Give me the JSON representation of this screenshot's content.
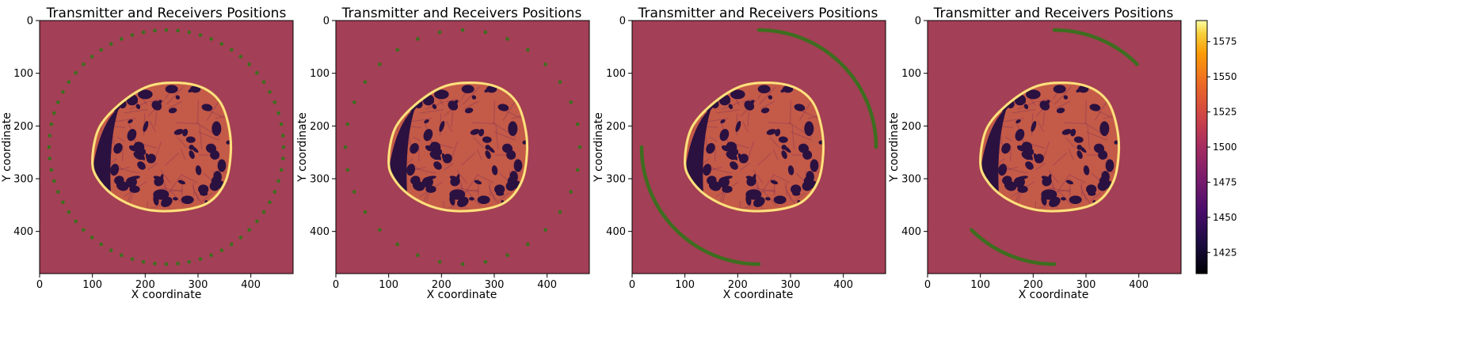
{
  "chart_data": [
    {
      "type": "heatmap",
      "panel": 1,
      "title": "Transmitter and Receivers Positions",
      "xlabel": "X coordinate",
      "ylabel": "Y coordinate",
      "xlim": [
        0,
        480
      ],
      "ylim": [
        480,
        0
      ],
      "xticks": [
        "0",
        "100",
        "200",
        "300",
        "400"
      ],
      "yticks": [
        "0",
        "100",
        "200",
        "300",
        "400"
      ],
      "sensor_layout": "full ring of discrete points",
      "ring_center": [
        240,
        240
      ],
      "ring_radius": 222,
      "sensor_count": 64,
      "arc_degrees": [
        0,
        360
      ]
    },
    {
      "type": "heatmap",
      "panel": 2,
      "title": "Transmitter and Receivers Positions",
      "xlabel": "X coordinate",
      "ylabel": "Y coordinate",
      "xlim": [
        0,
        480
      ],
      "ylim": [
        480,
        0
      ],
      "xticks": [
        "0",
        "100",
        "200",
        "300",
        "400"
      ],
      "yticks": [
        "0",
        "100",
        "200",
        "300",
        "400"
      ],
      "sensor_layout": "full ring of discrete points",
      "ring_center": [
        240,
        240
      ],
      "ring_radius": 222,
      "sensor_count": 32,
      "arc_degrees": [
        0,
        360
      ]
    },
    {
      "type": "heatmap",
      "panel": 3,
      "title": "Transmitter and Receivers Positions",
      "xlabel": "X coordinate",
      "ylabel": "Y coordinate",
      "xlim": [
        0,
        480
      ],
      "ylim": [
        480,
        0
      ],
      "xticks": [
        "0",
        "100",
        "200",
        "300",
        "400"
      ],
      "yticks": [
        "0",
        "100",
        "200",
        "300",
        "400"
      ],
      "sensor_layout": "two opposing continuous arcs",
      "ring_center": [
        240,
        240
      ],
      "ring_radius": 222,
      "arcs_degrees": [
        [
          -90,
          0
        ],
        [
          90,
          180
        ]
      ]
    },
    {
      "type": "heatmap",
      "panel": 4,
      "title": "Transmitter and Receivers Positions",
      "xlabel": "X coordinate",
      "ylabel": "Y coordinate",
      "xlim": [
        0,
        480
      ],
      "ylim": [
        480,
        0
      ],
      "xticks": [
        "0",
        "100",
        "200",
        "300",
        "400"
      ],
      "yticks": [
        "0",
        "100",
        "200",
        "300",
        "400"
      ],
      "sensor_layout": "two opposing short continuous arcs",
      "ring_center": [
        240,
        240
      ],
      "ring_radius": 222,
      "arcs_degrees": [
        [
          -90,
          -45
        ],
        [
          90,
          135
        ]
      ]
    }
  ],
  "colorbar": {
    "colormap": "inferno",
    "vmin": 1410,
    "vmax": 1590,
    "ticks": [
      "1425",
      "1450",
      "1475",
      "1500",
      "1525",
      "1550",
      "1575"
    ]
  },
  "colors": {
    "background_medium": "#a33f56",
    "sensor_color": "#3d6e1f",
    "inclusion_dark": "#2a1140",
    "tissue": "#c45a48",
    "rim": "#fbd46a"
  }
}
